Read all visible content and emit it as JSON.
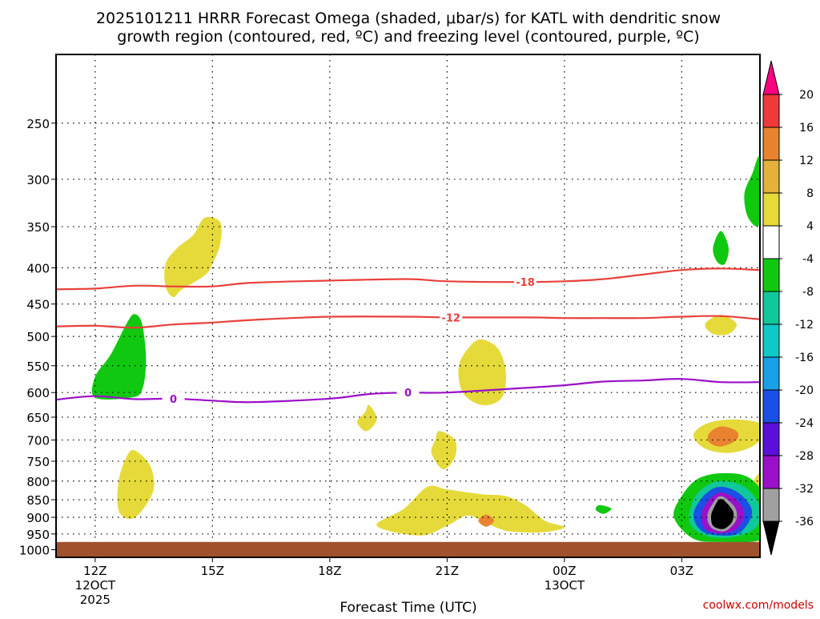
{
  "chart_data": {
    "type": "heatmap",
    "title_line1": "2025101211 HRRR Forecast Omega (shaded, μbar/s) for KATL with dendritic snow",
    "title_line2": "growth region (contoured, red, ºC) and freezing level (contoured, purple, ºC)",
    "xlabel": "Forecast Time (UTC)",
    "credit": "coolwx.com/models",
    "x_ticks": [
      {
        "hour": 0,
        "label": "12Z",
        "sub1": "12OCT",
        "sub2": "2025"
      },
      {
        "hour": 3,
        "label": "15Z",
        "sub1": "",
        "sub2": ""
      },
      {
        "hour": 6,
        "label": "18Z",
        "sub1": "",
        "sub2": ""
      },
      {
        "hour": 9,
        "label": "21Z",
        "sub1": "",
        "sub2": ""
      },
      {
        "hour": 12,
        "label": "00Z",
        "sub1": "13OCT",
        "sub2": ""
      },
      {
        "hour": 15,
        "label": "03Z",
        "sub1": "",
        "sub2": ""
      }
    ],
    "x_range_hours": [
      -1,
      17
    ],
    "y_levels": [
      250,
      300,
      350,
      400,
      450,
      500,
      550,
      600,
      650,
      700,
      750,
      800,
      850,
      900,
      950,
      1000
    ],
    "y_range_hpa": [
      200,
      1025
    ],
    "y_scale": "log-pressure",
    "grid": "dotted",
    "ground_level_hpa": 975,
    "ground_color": "#a0522d",
    "colorbar": {
      "labels": [
        "20",
        "16",
        "12",
        "8",
        "4",
        "-4",
        "-8",
        "-12",
        "-16",
        "-20",
        "-24",
        "-28",
        "-32",
        "-36"
      ],
      "colors": [
        "#ff0080",
        "#ef3a3a",
        "#e9832f",
        "#e4b13b",
        "#e5da3a",
        "#ffffff",
        "#10c810",
        "#10c89a",
        "#10c8c8",
        "#1aa0e6",
        "#1a50e6",
        "#5a10d8",
        "#9a10c8",
        "#a0a0a0",
        "#000000"
      ]
    },
    "contours": [
      {
        "label": "-18",
        "color": "#e8413c",
        "points": [
          [
            -1,
            429
          ],
          [
            0,
            428
          ],
          [
            1,
            424
          ],
          [
            2,
            425
          ],
          [
            3,
            425
          ],
          [
            4,
            420
          ],
          [
            6,
            417
          ],
          [
            8,
            415
          ],
          [
            9,
            418
          ],
          [
            11,
            419
          ],
          [
            12,
            418
          ],
          [
            13,
            415
          ],
          [
            14,
            409
          ],
          [
            15,
            403
          ],
          [
            16,
            401
          ],
          [
            17,
            403
          ]
        ],
        "label_hour": 11.0,
        "label_hpa": 419
      },
      {
        "label": "-12",
        "color": "#e8413c",
        "points": [
          [
            -1,
            484
          ],
          [
            0,
            483
          ],
          [
            1,
            486
          ],
          [
            2,
            481
          ],
          [
            3,
            478
          ],
          [
            4,
            474
          ],
          [
            6,
            469
          ],
          [
            8,
            469
          ],
          [
            9,
            470
          ],
          [
            11,
            470
          ],
          [
            12,
            471
          ],
          [
            13,
            471
          ],
          [
            14,
            471
          ],
          [
            15,
            469
          ],
          [
            16,
            468
          ],
          [
            17,
            473
          ]
        ],
        "label_hour": 9.1,
        "label_hpa": 470
      },
      {
        "label": "0",
        "color": "#9a10c8",
        "points": [
          [
            -1,
            614
          ],
          [
            0,
            607
          ],
          [
            1,
            613
          ],
          [
            2,
            612
          ],
          [
            3,
            616
          ],
          [
            4,
            619
          ],
          [
            6,
            612
          ],
          [
            7,
            603
          ],
          [
            8,
            600
          ],
          [
            9,
            600
          ],
          [
            11,
            591
          ],
          [
            12,
            586
          ],
          [
            13,
            579
          ],
          [
            14,
            577
          ],
          [
            15,
            574
          ],
          [
            16,
            580
          ],
          [
            17,
            580
          ]
        ],
        "label_hour": 2.0,
        "label_hpa": 612
      },
      {
        "label": "0",
        "color": "#9a10c8",
        "points": [],
        "label_hour": 8.0,
        "label_hpa": 600
      }
    ],
    "shaded_regions": [
      {
        "color": "#e5da3a",
        "points": [
          [
            2.8,
            340
          ],
          [
            3.2,
            345
          ],
          [
            3.2,
            370
          ],
          [
            3.0,
            395
          ],
          [
            2.8,
            410
          ],
          [
            2.2,
            430
          ],
          [
            2.0,
            440
          ],
          [
            1.8,
            425
          ],
          [
            1.8,
            395
          ],
          [
            2.1,
            375
          ],
          [
            2.5,
            360
          ]
        ]
      },
      {
        "color": "#10c810",
        "points": [
          [
            1.0,
            465
          ],
          [
            1.2,
            480
          ],
          [
            1.3,
            540
          ],
          [
            1.2,
            595
          ],
          [
            0.9,
            610
          ],
          [
            0.0,
            610
          ],
          [
            0.0,
            570
          ],
          [
            0.4,
            530
          ],
          [
            0.8,
            480
          ]
        ]
      },
      {
        "color": "#e5da3a",
        "points": [
          [
            1.0,
            724
          ],
          [
            1.4,
            760
          ],
          [
            1.5,
            820
          ],
          [
            1.2,
            880
          ],
          [
            0.9,
            905
          ],
          [
            0.6,
            880
          ],
          [
            0.6,
            800
          ],
          [
            0.8,
            740
          ]
        ]
      },
      {
        "color": "#e5da3a",
        "points": [
          [
            7.0,
            625
          ],
          [
            7.2,
            650
          ],
          [
            7.1,
            670
          ],
          [
            6.9,
            680
          ],
          [
            6.7,
            660
          ],
          [
            6.9,
            640
          ]
        ]
      },
      {
        "color": "#e5da3a",
        "points": [
          [
            9.9,
            505
          ],
          [
            10.3,
            520
          ],
          [
            10.5,
            560
          ],
          [
            10.4,
            610
          ],
          [
            9.9,
            625
          ],
          [
            9.4,
            600
          ],
          [
            9.3,
            550
          ],
          [
            9.6,
            515
          ]
        ]
      },
      {
        "color": "#e5da3a",
        "points": [
          [
            8.8,
            680
          ],
          [
            9.2,
            700
          ],
          [
            9.2,
            740
          ],
          [
            8.9,
            770
          ],
          [
            8.6,
            730
          ],
          [
            8.7,
            700
          ]
        ]
      },
      {
        "color": "#e5da3a",
        "points": [
          [
            8.5,
            815
          ],
          [
            9.0,
            822
          ],
          [
            9.9,
            835
          ],
          [
            10.5,
            840
          ],
          [
            11.0,
            865
          ],
          [
            11.5,
            910
          ],
          [
            12.0,
            930
          ],
          [
            11.4,
            945
          ],
          [
            10.5,
            940
          ],
          [
            9.9,
            910
          ],
          [
            9.5,
            895
          ],
          [
            9.0,
            925
          ],
          [
            8.3,
            955
          ],
          [
            7.2,
            925
          ],
          [
            7.9,
            875
          ]
        ]
      },
      {
        "color": "#e9832f",
        "points": [
          [
            10.0,
            892
          ],
          [
            10.2,
            910
          ],
          [
            10.0,
            928
          ],
          [
            9.8,
            910
          ]
        ]
      },
      {
        "color": "#10c810",
        "points": [
          [
            12.9,
            865
          ],
          [
            13.2,
            875
          ],
          [
            13.0,
            890
          ],
          [
            12.8,
            878
          ]
        ]
      },
      {
        "color": "#e5da3a",
        "points": [
          [
            15.4,
            830
          ],
          [
            15.6,
            850
          ],
          [
            15.7,
            880
          ],
          [
            15.2,
            880
          ],
          [
            15.0,
            850
          ]
        ]
      },
      {
        "color": "#e5da3a",
        "points": [
          [
            16.0,
            466
          ],
          [
            16.4,
            480
          ],
          [
            16.2,
            496
          ],
          [
            15.8,
            496
          ],
          [
            15.6,
            480
          ]
        ]
      },
      {
        "color": "#10c810",
        "points": [
          [
            16.0,
            355
          ],
          [
            16.2,
            375
          ],
          [
            16.1,
            395
          ],
          [
            15.9,
            392
          ],
          [
            15.8,
            375
          ]
        ]
      },
      {
        "color": "#10c810",
        "points": [
          [
            17.0,
            280
          ],
          [
            17.0,
            345
          ],
          [
            16.7,
            340
          ],
          [
            16.6,
            315
          ],
          [
            16.8,
            295
          ]
        ]
      },
      {
        "color": "#e5da3a",
        "points": [
          [
            16.2,
            655
          ],
          [
            16.9,
            660
          ],
          [
            17.2,
            680
          ],
          [
            16.8,
            715
          ],
          [
            16.2,
            730
          ],
          [
            15.6,
            720
          ],
          [
            15.3,
            690
          ],
          [
            15.6,
            665
          ]
        ]
      },
      {
        "color": "#e9832f",
        "points": [
          [
            16.0,
            670
          ],
          [
            16.4,
            680
          ],
          [
            16.4,
            700
          ],
          [
            16.0,
            715
          ],
          [
            15.7,
            705
          ],
          [
            15.7,
            685
          ]
        ]
      },
      {
        "color": "#e5da3a",
        "points": [
          [
            17.0,
            780
          ],
          [
            17.0,
            830
          ],
          [
            16.8,
            810
          ]
        ]
      },
      {
        "color": "#10c810",
        "points": [
          [
            16.0,
            780
          ],
          [
            16.7,
            790
          ],
          [
            17.2,
            850
          ],
          [
            17.4,
            920
          ],
          [
            17.0,
            970
          ],
          [
            16.0,
            975
          ],
          [
            15.3,
            965
          ],
          [
            14.8,
            900
          ],
          [
            15.0,
            840
          ],
          [
            15.4,
            795
          ]
        ]
      },
      {
        "color": "#10c89a",
        "points": [
          [
            16.0,
            800
          ],
          [
            16.6,
            815
          ],
          [
            17.0,
            870
          ],
          [
            16.9,
            930
          ],
          [
            16.3,
            960
          ],
          [
            15.6,
            955
          ],
          [
            15.2,
            915
          ],
          [
            15.3,
            850
          ],
          [
            15.6,
            815
          ]
        ]
      },
      {
        "color": "#1a50e6",
        "points": [
          [
            16.0,
            815
          ],
          [
            16.5,
            835
          ],
          [
            16.8,
            885
          ],
          [
            16.5,
            945
          ],
          [
            16.0,
            955
          ],
          [
            15.5,
            940
          ],
          [
            15.3,
            890
          ],
          [
            15.6,
            835
          ]
        ]
      },
      {
        "color": "#9a10c8",
        "points": [
          [
            16.0,
            830
          ],
          [
            16.4,
            850
          ],
          [
            16.6,
            890
          ],
          [
            16.4,
            935
          ],
          [
            16.0,
            948
          ],
          [
            15.6,
            935
          ],
          [
            15.5,
            890
          ],
          [
            15.7,
            850
          ]
        ]
      },
      {
        "color": "#a0a0a0",
        "points": [
          [
            16.0,
            840
          ],
          [
            16.35,
            870
          ],
          [
            16.4,
            905
          ],
          [
            16.2,
            935
          ],
          [
            16.0,
            942
          ],
          [
            15.75,
            930
          ],
          [
            15.65,
            900
          ],
          [
            15.75,
            868
          ]
        ]
      },
      {
        "color": "#000000",
        "points": [
          [
            16.0,
            848
          ],
          [
            16.3,
            880
          ],
          [
            16.3,
            910
          ],
          [
            16.15,
            930
          ],
          [
            16.0,
            935
          ],
          [
            15.8,
            925
          ],
          [
            15.75,
            900
          ],
          [
            15.8,
            878
          ]
        ]
      }
    ]
  }
}
